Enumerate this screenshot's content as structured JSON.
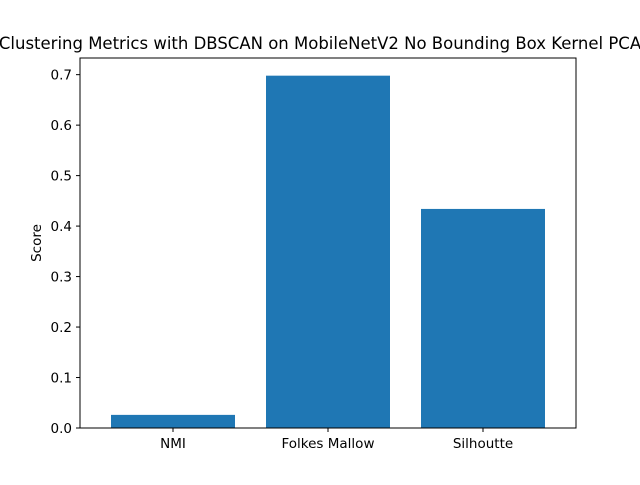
{
  "chart_data": {
    "type": "bar",
    "title": "Clustering Metrics with DBSCAN on MobileNetV2 No Bounding Box Kernel PCA",
    "xlabel": "",
    "ylabel": "Score",
    "categories": [
      "NMI",
      "Folkes Mallow",
      "Silhoutte"
    ],
    "values": [
      0.026,
      0.698,
      0.434
    ],
    "ylim": [
      0,
      0.733
    ],
    "yticks": [
      "0.0",
      "0.1",
      "0.2",
      "0.3",
      "0.4",
      "0.5",
      "0.6",
      "0.7"
    ],
    "grid": false,
    "bar_color": "#1f77b4"
  }
}
